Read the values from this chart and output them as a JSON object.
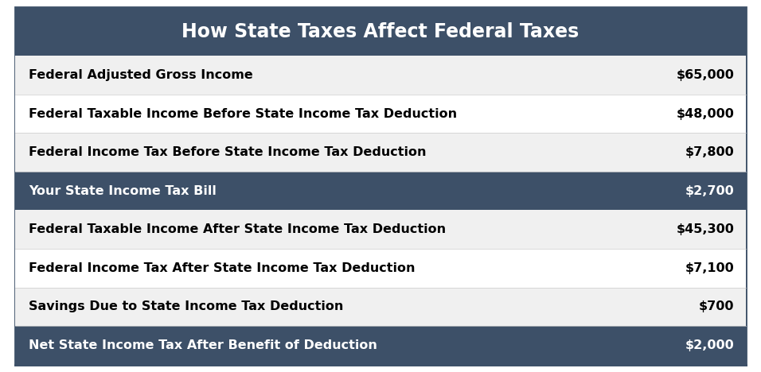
{
  "title": "How State Taxes Affect Federal Taxes",
  "title_bg": "#3d5068",
  "title_color": "#ffffff",
  "rows": [
    {
      "label": "Federal Adjusted Gross Income",
      "value": "$65,000",
      "bg": "#f0f0f0",
      "text_color": "#000000",
      "bold": true
    },
    {
      "label": "Federal Taxable Income Before State Income Tax Deduction",
      "value": "$48,000",
      "bg": "#ffffff",
      "text_color": "#000000",
      "bold": true
    },
    {
      "label": "Federal Income Tax Before State Income Tax Deduction",
      "value": "$7,800",
      "bg": "#f0f0f0",
      "text_color": "#000000",
      "bold": true
    },
    {
      "label": "Your State Income Tax Bill",
      "value": "$2,700",
      "bg": "#3d5068",
      "text_color": "#ffffff",
      "bold": true
    },
    {
      "label": "Federal Taxable Income After State Income Tax Deduction",
      "value": "$45,300",
      "bg": "#f0f0f0",
      "text_color": "#000000",
      "bold": true
    },
    {
      "label": "Federal Income Tax After State Income Tax Deduction",
      "value": "$7,100",
      "bg": "#ffffff",
      "text_color": "#000000",
      "bold": true
    },
    {
      "label": "Savings Due to State Income Tax Deduction",
      "value": "$700",
      "bg": "#f0f0f0",
      "text_color": "#000000",
      "bold": true
    },
    {
      "label": "Net State Income Tax After Benefit of Deduction",
      "value": "$2,000",
      "bg": "#3d5068",
      "text_color": "#ffffff",
      "bold": true
    }
  ],
  "outer_bg": "#ffffff",
  "border_color": "#3d5068",
  "figsize": [
    9.56,
    4.68
  ],
  "dpi": 100
}
